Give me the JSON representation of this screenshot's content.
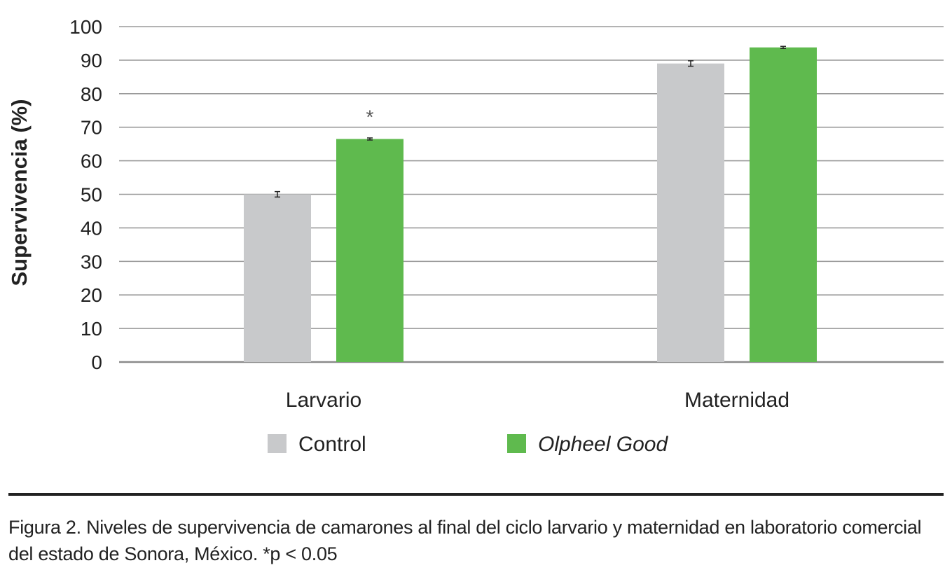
{
  "chart_data": {
    "type": "bar",
    "ylabel": "Supervivencia (%)",
    "ylim": [
      0,
      100
    ],
    "yticks": [
      0,
      10,
      20,
      30,
      40,
      50,
      60,
      70,
      80,
      90,
      100
    ],
    "categories": [
      "Larvario",
      "Maternidad"
    ],
    "series": [
      {
        "name": "Control",
        "italic": false,
        "color": "#c8c9cb",
        "values": [
          50,
          89
        ],
        "errors": [
          0.6,
          0.6
        ]
      },
      {
        "name": "Olpheel Good",
        "italic": true,
        "color": "#5fba4e",
        "values": [
          66.5,
          93.8
        ],
        "errors": [
          0.1,
          0.1
        ]
      }
    ],
    "annotations": [
      {
        "category": "Larvario",
        "series": "Olpheel Good",
        "text": "*"
      }
    ],
    "grid": true,
    "legend_position": "bottom"
  },
  "caption": {
    "label": "Figura 2.",
    "text": "Niveles de supervivencia de camarones al final del ciclo larvario y maternidad en laboratorio comercial del estado de Sonora, México. *p < 0.05"
  }
}
